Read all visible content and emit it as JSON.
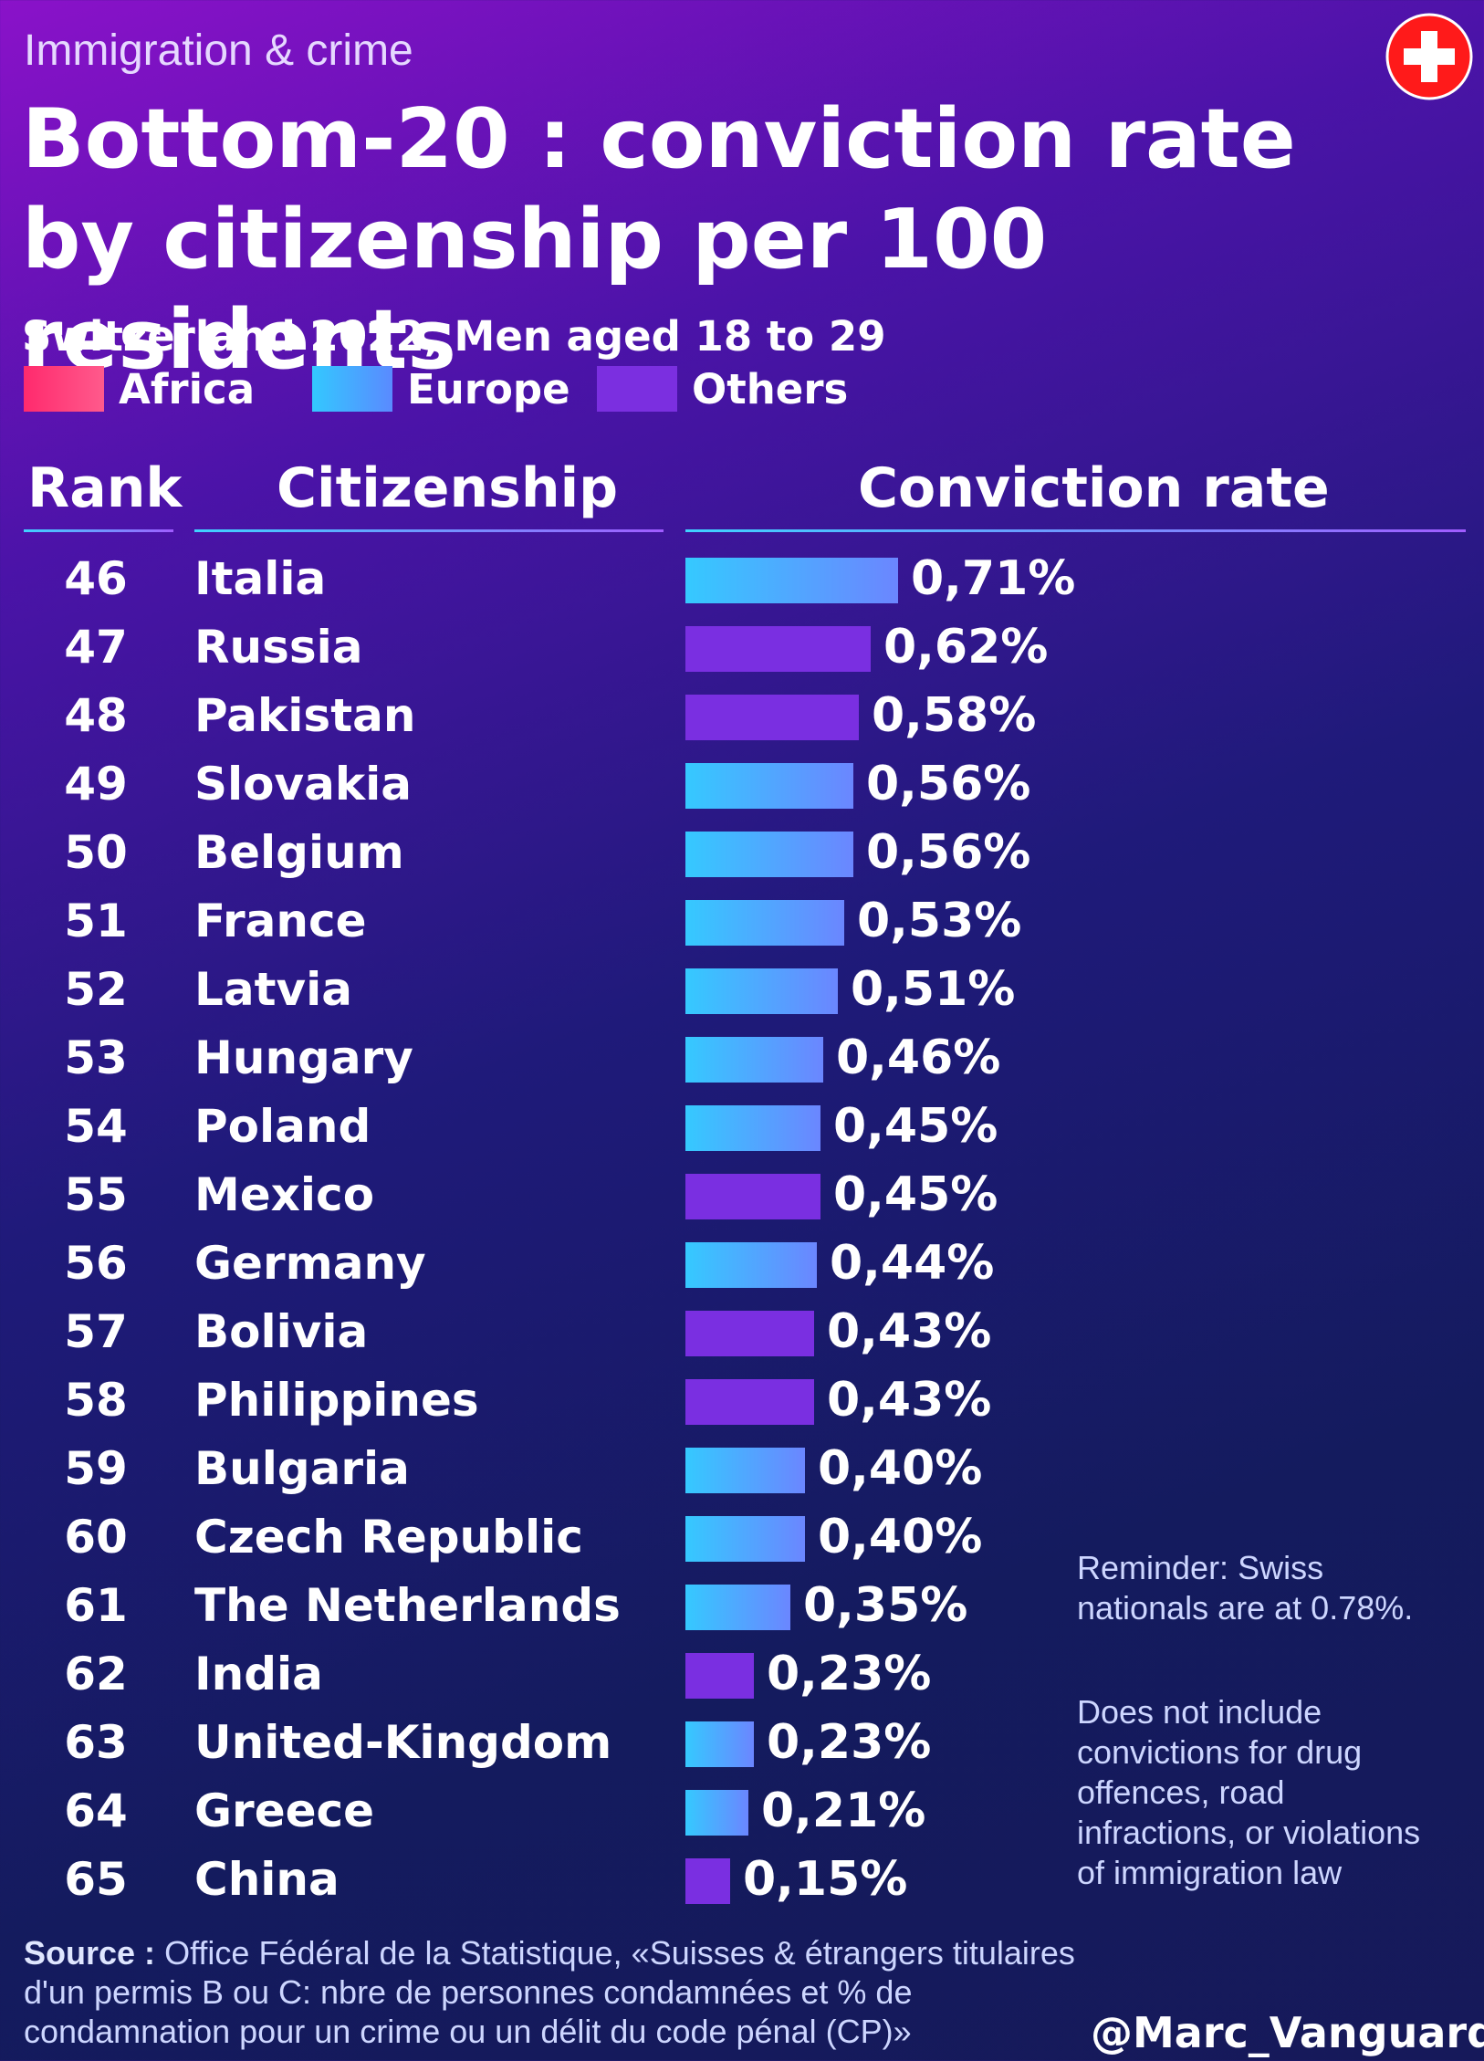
{
  "header": {
    "kicker": "Immigration & crime",
    "title": "Bottom-20 : conviction rate by citizenship per 100 residents",
    "subtitle": "Switzerland 2022, Men aged 18 to 29"
  },
  "legend": [
    {
      "label": "Africa",
      "color": "#ff2a6d"
    },
    {
      "label": "Europe",
      "color": "#4aa8ff"
    },
    {
      "label": "Others",
      "color": "#7a2fe1"
    }
  ],
  "columns": {
    "rank": "Rank",
    "citizenship": "Citizenship",
    "rate": "Conviction rate"
  },
  "chart_data": {
    "type": "bar",
    "orientation": "horizontal",
    "title": "Bottom-20 : conviction rate by citizenship per 100 residents",
    "categories": [
      "Italia",
      "Russia",
      "Pakistan",
      "Slovakia",
      "Belgium",
      "France",
      "Latvia",
      "Hungary",
      "Poland",
      "Mexico",
      "Germany",
      "Bolivia",
      "Philippines",
      "Bulgaria",
      "Czech Republic",
      "The Netherlands",
      "India",
      "United-Kingdom",
      "Greece",
      "China"
    ],
    "ranks": [
      46,
      47,
      48,
      49,
      50,
      51,
      52,
      53,
      54,
      55,
      56,
      57,
      58,
      59,
      60,
      61,
      62,
      63,
      64,
      65
    ],
    "values": [
      0.71,
      0.62,
      0.58,
      0.56,
      0.56,
      0.53,
      0.51,
      0.46,
      0.45,
      0.45,
      0.44,
      0.43,
      0.43,
      0.4,
      0.4,
      0.35,
      0.23,
      0.23,
      0.21,
      0.15
    ],
    "labels": [
      "0,71%",
      "0,62%",
      "0,58%",
      "0,56%",
      "0,56%",
      "0,53%",
      "0,51%",
      "0,46%",
      "0,45%",
      "0,45%",
      "0,44%",
      "0,43%",
      "0,43%",
      "0,40%",
      "0,40%",
      "0,35%",
      "0,23%",
      "0,23%",
      "0,21%",
      "0,15%"
    ],
    "groups": [
      "Europe",
      "Others",
      "Others",
      "Europe",
      "Europe",
      "Europe",
      "Europe",
      "Europe",
      "Europe",
      "Others",
      "Europe",
      "Others",
      "Others",
      "Europe",
      "Europe",
      "Europe",
      "Others",
      "Europe",
      "Europe",
      "Others"
    ],
    "group_colors": {
      "Africa": "#ff2a6d",
      "Europe": "#4aa8ff",
      "Others": "#7a2fe1"
    }
  },
  "notes": {
    "reminder": "Reminder: Swiss nationals are at 0.78%.",
    "exclusion": "Does not include convictions for drug offences, road infractions, or violations of immigration law"
  },
  "footer": {
    "source_label": "Source :",
    "source_text": "Office Fédéral de la Statistique, «Suisses & étrangers titulaires d'un permis B ou C: nbre de personnes condamnées et % de condamnation pour un crime ou un délit du code pénal (CP)»",
    "handle": "@Marc_Vanguard_i"
  },
  "icons": {
    "flag": "swiss-flag-icon"
  }
}
